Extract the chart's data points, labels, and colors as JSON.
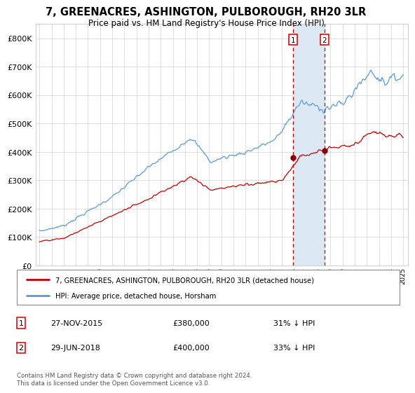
{
  "title": "7, GREENACRES, ASHINGTON, PULBOROUGH, RH20 3LR",
  "subtitle": "Price paid vs. HM Land Registry's House Price Index (HPI)",
  "legend_line1": "7, GREENACRES, ASHINGTON, PULBOROUGH, RH20 3LR (detached house)",
  "legend_line2": "HPI: Average price, detached house, Horsham",
  "footer": "Contains HM Land Registry data © Crown copyright and database right 2024.\nThis data is licensed under the Open Government Licence v3.0.",
  "sale1_date": "27-NOV-2015",
  "sale1_price": "£380,000",
  "sale1_pct": "31% ↓ HPI",
  "sale2_date": "29-JUN-2018",
  "sale2_price": "£400,000",
  "sale2_pct": "33% ↓ HPI",
  "hpi_color": "#5b9bd5",
  "price_color": "#c00000",
  "marker_color": "#8b0000",
  "vline_color": "#cc0000",
  "shade_color": "#dce9f5",
  "grid_color": "#d0d0d0",
  "bg_color": "#ffffff",
  "ylim": [
    0,
    850000
  ],
  "yticks": [
    0,
    100000,
    200000,
    300000,
    400000,
    500000,
    600000,
    700000,
    800000
  ],
  "sale1_yr": 2015.92,
  "sale2_yr": 2018.5
}
